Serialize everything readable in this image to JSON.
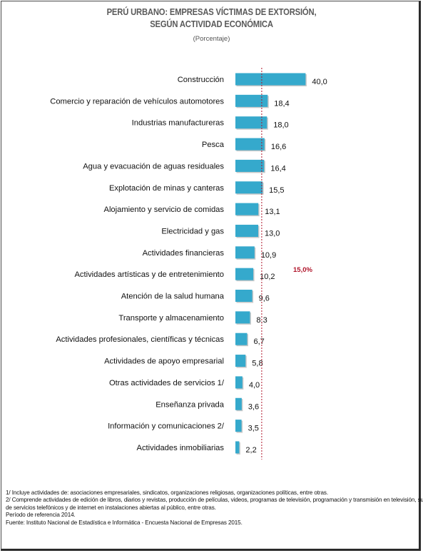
{
  "title_line1": "PERÚ URBANO: EMPRESAS VÍCTIMAS DE EXTORSIÓN,",
  "title_line2": "SEGÚN ACTIVIDAD ECONÓMICA",
  "subtitle": "(Porcentaje)",
  "chart_data": {
    "type": "bar",
    "orientation": "horizontal",
    "title": "PERÚ URBANO: EMPRESAS VÍCTIMAS DE EXTORSIÓN, SEGÚN ACTIVIDAD ECONÓMICA",
    "ylabel": "",
    "xlabel": "",
    "unit": "Porcentaje",
    "xlim": [
      0,
      40
    ],
    "categories": [
      "Construcción",
      "Comercio y reparación de vehículos automotores",
      "Industrias manufactureras",
      "Pesca",
      "Agua y evacuación de aguas residuales",
      "Explotación de minas y canteras",
      "Alojamiento y servicio de comidas",
      "Electricidad y gas",
      "Actividades financieras",
      "Actividades artísticas y de entretenimiento",
      "Atención de la salud humana",
      "Transporte y almacenamiento",
      "Actividades profesionales, científicas y técnicas",
      "Actividades de apoyo empresarial",
      "Otras actividades de servicios 1/",
      "Enseñanza privada",
      "Información y comunicaciones 2/",
      "Actividades inmobiliarias"
    ],
    "values": [
      40.0,
      18.4,
      18.0,
      16.6,
      16.4,
      15.5,
      13.1,
      13.0,
      10.9,
      10.2,
      9.6,
      8.3,
      6.7,
      5.8,
      4.0,
      3.6,
      3.5,
      2.2
    ],
    "value_labels": [
      "40,0",
      "18,4",
      "18,0",
      "16,6",
      "16,4",
      "15,5",
      "13,1",
      "13,0",
      "10,9",
      "10,2",
      "9,6",
      "8,3",
      "6,7",
      "5,8",
      "4,0",
      "3,6",
      "3,5",
      "2,2"
    ],
    "reference_line": {
      "value": 15.0,
      "label": "15,0%",
      "color": "#b0142a"
    },
    "bar_color": "#35a9cc",
    "grid": false,
    "legend": "none"
  },
  "notes": [
    "1/ Incluye actividades de: asociaciones empresariales, sindicatos, organizaciones religiosas, organizaciones políticas, entre otras.",
    "2/ Comprende actividades de edición de libros, diarios y revistas, producción de películas, videos, programas de televisión, programación y transmisión en televisión, suministro",
    "de servicios telefónicos y de internet en instalaciones abiertas al público, entre otras.",
    "Período de referencia 2014.",
    "Fuente: Instituto Nacional de Estadística e Informática - Encuesta Nacional de Empresas 2015."
  ]
}
